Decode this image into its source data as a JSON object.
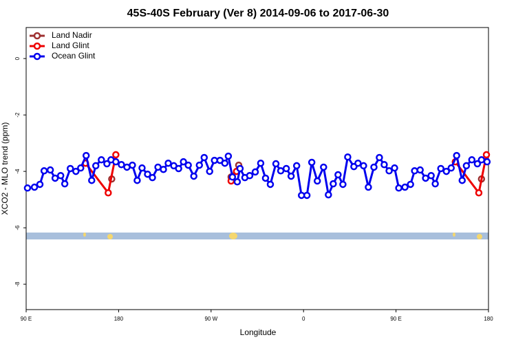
{
  "chart_data": {
    "type": "line",
    "title": "45S-40S February (Ver 8)   2014-09-06 to 2017-06-30",
    "x_label": "Longitude",
    "y_label": "XCO2 - MLO trend (ppm)",
    "xlim": [
      90,
      540
    ],
    "xticks": [
      {
        "value": 90,
        "label": "90 E"
      },
      180,
      {
        "value": 270,
        "label": "90 W"
      },
      {
        "value": 360,
        "label": "0"
      },
      {
        "value": 450,
        "label": "90 E"
      },
      {
        "value": 540,
        "label": "180"
      }
    ],
    "ylim": [
      -8.9,
      1.1
    ],
    "yticks": [
      0,
      -2,
      -4,
      -6,
      -8
    ],
    "legend": "top-left",
    "series": [
      {
        "name": "Land Nadir",
        "color": "#9e3030",
        "x": [
          173.3,
          null,
          289.5,
          296.9,
          null,
          533.2
        ],
        "values": [
          -4.27,
          null,
          -4.2,
          -3.78,
          null,
          -4.27
        ]
      },
      {
        "name": "Land Glint",
        "color": "#ee0000",
        "x": [
          147.8,
          169.9,
          177.3,
          null,
          289.5,
          294.8,
          null,
          507.7,
          530.6,
          538.0
        ],
        "values": [
          -3.71,
          -4.76,
          -3.41,
          null,
          -4.34,
          -4.0,
          null,
          -3.66,
          -4.76,
          -3.41
        ]
      },
      {
        "name": "Ocean Glint",
        "color": "#0000ee",
        "x": [
          91.3,
          98.1,
          103.4,
          107.5,
          113.5,
          118.2,
          123.6,
          127.6,
          133.0,
          138.4,
          143.1,
          148.4,
          153.8,
          157.8,
          163.2,
          168.6,
          172.6,
          177.3,
          182.7,
          188.1,
          193.4,
          198.1,
          202.8,
          208.2,
          212.9,
          218.3,
          223.6,
          228.3,
          233.7,
          238.4,
          243.1,
          247.8,
          253.2,
          258.6,
          263.3,
          268.6,
          273.3,
          278.7,
          283.4,
          286.8,
          290.8,
          295.5,
          298.2,
          302.9,
          307.6,
          313.0,
          318.3,
          323.0,
          327.7,
          333.1,
          337.8,
          343.2,
          347.9,
          353.3,
          358.0,
          363.3,
          368.0,
          373.4,
          379.5,
          384.2,
          388.9,
          393.6,
          398.3,
          403.0,
          409.0,
          413.0,
          418.4,
          423.1,
          428.5,
          433.8,
          438.5,
          443.3,
          448.6,
          452.7,
          458.7,
          464.1,
          468.1,
          473.5,
          478.8,
          484.2,
          488.2,
          493.6,
          499.0,
          503.7,
          509.0,
          514.4,
          518.5,
          523.8,
          529.2,
          533.2,
          538.6
        ],
        "values": [
          -4.59,
          -4.56,
          -4.46,
          -3.98,
          -3.95,
          -4.24,
          -4.15,
          -4.44,
          -3.9,
          -4.0,
          -3.88,
          -3.44,
          -4.32,
          -3.8,
          -3.59,
          -3.73,
          -3.59,
          -3.66,
          -3.76,
          -3.85,
          -3.78,
          -4.32,
          -3.88,
          -4.1,
          -4.22,
          -3.85,
          -3.93,
          -3.71,
          -3.8,
          -3.9,
          -3.66,
          -3.78,
          -4.17,
          -3.78,
          -3.51,
          -4.0,
          -3.61,
          -3.61,
          -3.71,
          -3.46,
          -4.2,
          -4.37,
          -3.9,
          -4.22,
          -4.15,
          -4.02,
          -3.71,
          -4.24,
          -4.46,
          -3.73,
          -3.98,
          -3.9,
          -4.17,
          -3.8,
          -4.85,
          -4.85,
          -3.68,
          -4.34,
          -3.85,
          -4.83,
          -4.44,
          -4.12,
          -4.46,
          -3.49,
          -3.83,
          -3.71,
          -3.8,
          -4.56,
          -3.85,
          -3.51,
          -3.76,
          -3.98,
          -3.88,
          -4.59,
          -4.56,
          -4.46,
          -3.98,
          -3.95,
          -4.24,
          -4.15,
          -4.44,
          -3.9,
          -4.0,
          -3.88,
          -3.44,
          -4.32,
          -3.8,
          -3.59,
          -3.73,
          -3.59,
          -3.66
        ]
      }
    ]
  }
}
